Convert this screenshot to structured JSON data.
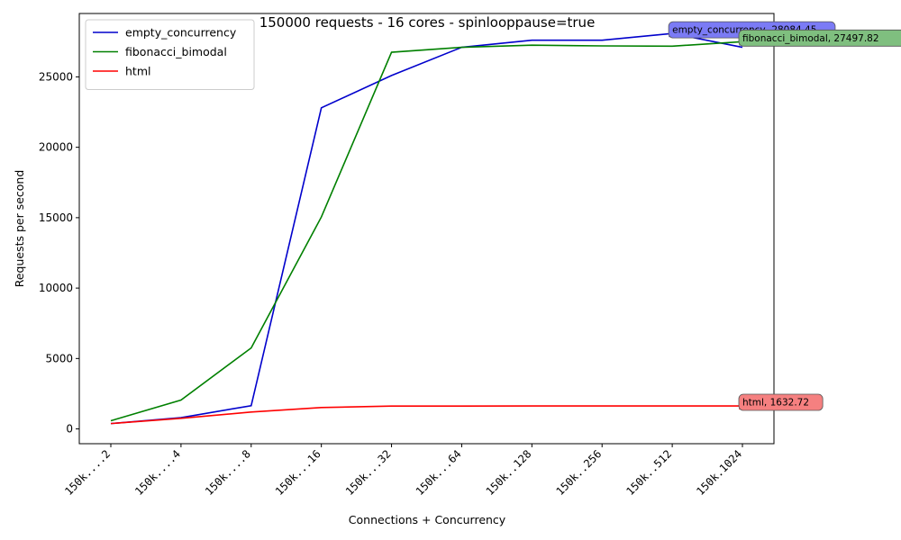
{
  "chart_data": {
    "type": "line",
    "title": "150000 requests - 16 cores - spinlooppause=true",
    "xlabel": "Connections + Concurrency",
    "ylabel": "Requests per second",
    "categories": [
      "150k....2",
      "150k....4",
      "150k....8",
      "150k...16",
      "150k...32",
      "150k...64",
      "150k..128",
      "150k..256",
      "150k..512",
      "150k.1024"
    ],
    "ylim": [
      -1050,
      29500
    ],
    "yticks": [
      0,
      5000,
      10000,
      15000,
      20000,
      25000
    ],
    "grid": false,
    "legend_position": "top-left",
    "series": [
      {
        "name": "empty_concurrency",
        "color": "#0000cc",
        "values": [
          380,
          800,
          1650,
          22800,
          25100,
          27100,
          27600,
          27600,
          28084.45,
          27100
        ],
        "annotation": {
          "index": 8,
          "text": "empty_concurrency, 28084.45",
          "box_color": "#7b7bf5"
        }
      },
      {
        "name": "fibonacci_bimodal",
        "color": "#008000",
        "values": [
          580,
          2050,
          5750,
          15050,
          26750,
          27100,
          27250,
          27200,
          27180,
          27497.82
        ],
        "annotation": {
          "index": 9,
          "text": "fibonacci_bimodal, 27497.82",
          "box_color": "#7fbf7f"
        }
      },
      {
        "name": "html",
        "color": "#ff0000",
        "values": [
          380,
          750,
          1200,
          1520,
          1620,
          1625,
          1630,
          1630,
          1632,
          1632.72
        ],
        "annotation": {
          "index": 9,
          "text": "html, 1632.72",
          "box_color": "#f58080"
        }
      }
    ]
  }
}
